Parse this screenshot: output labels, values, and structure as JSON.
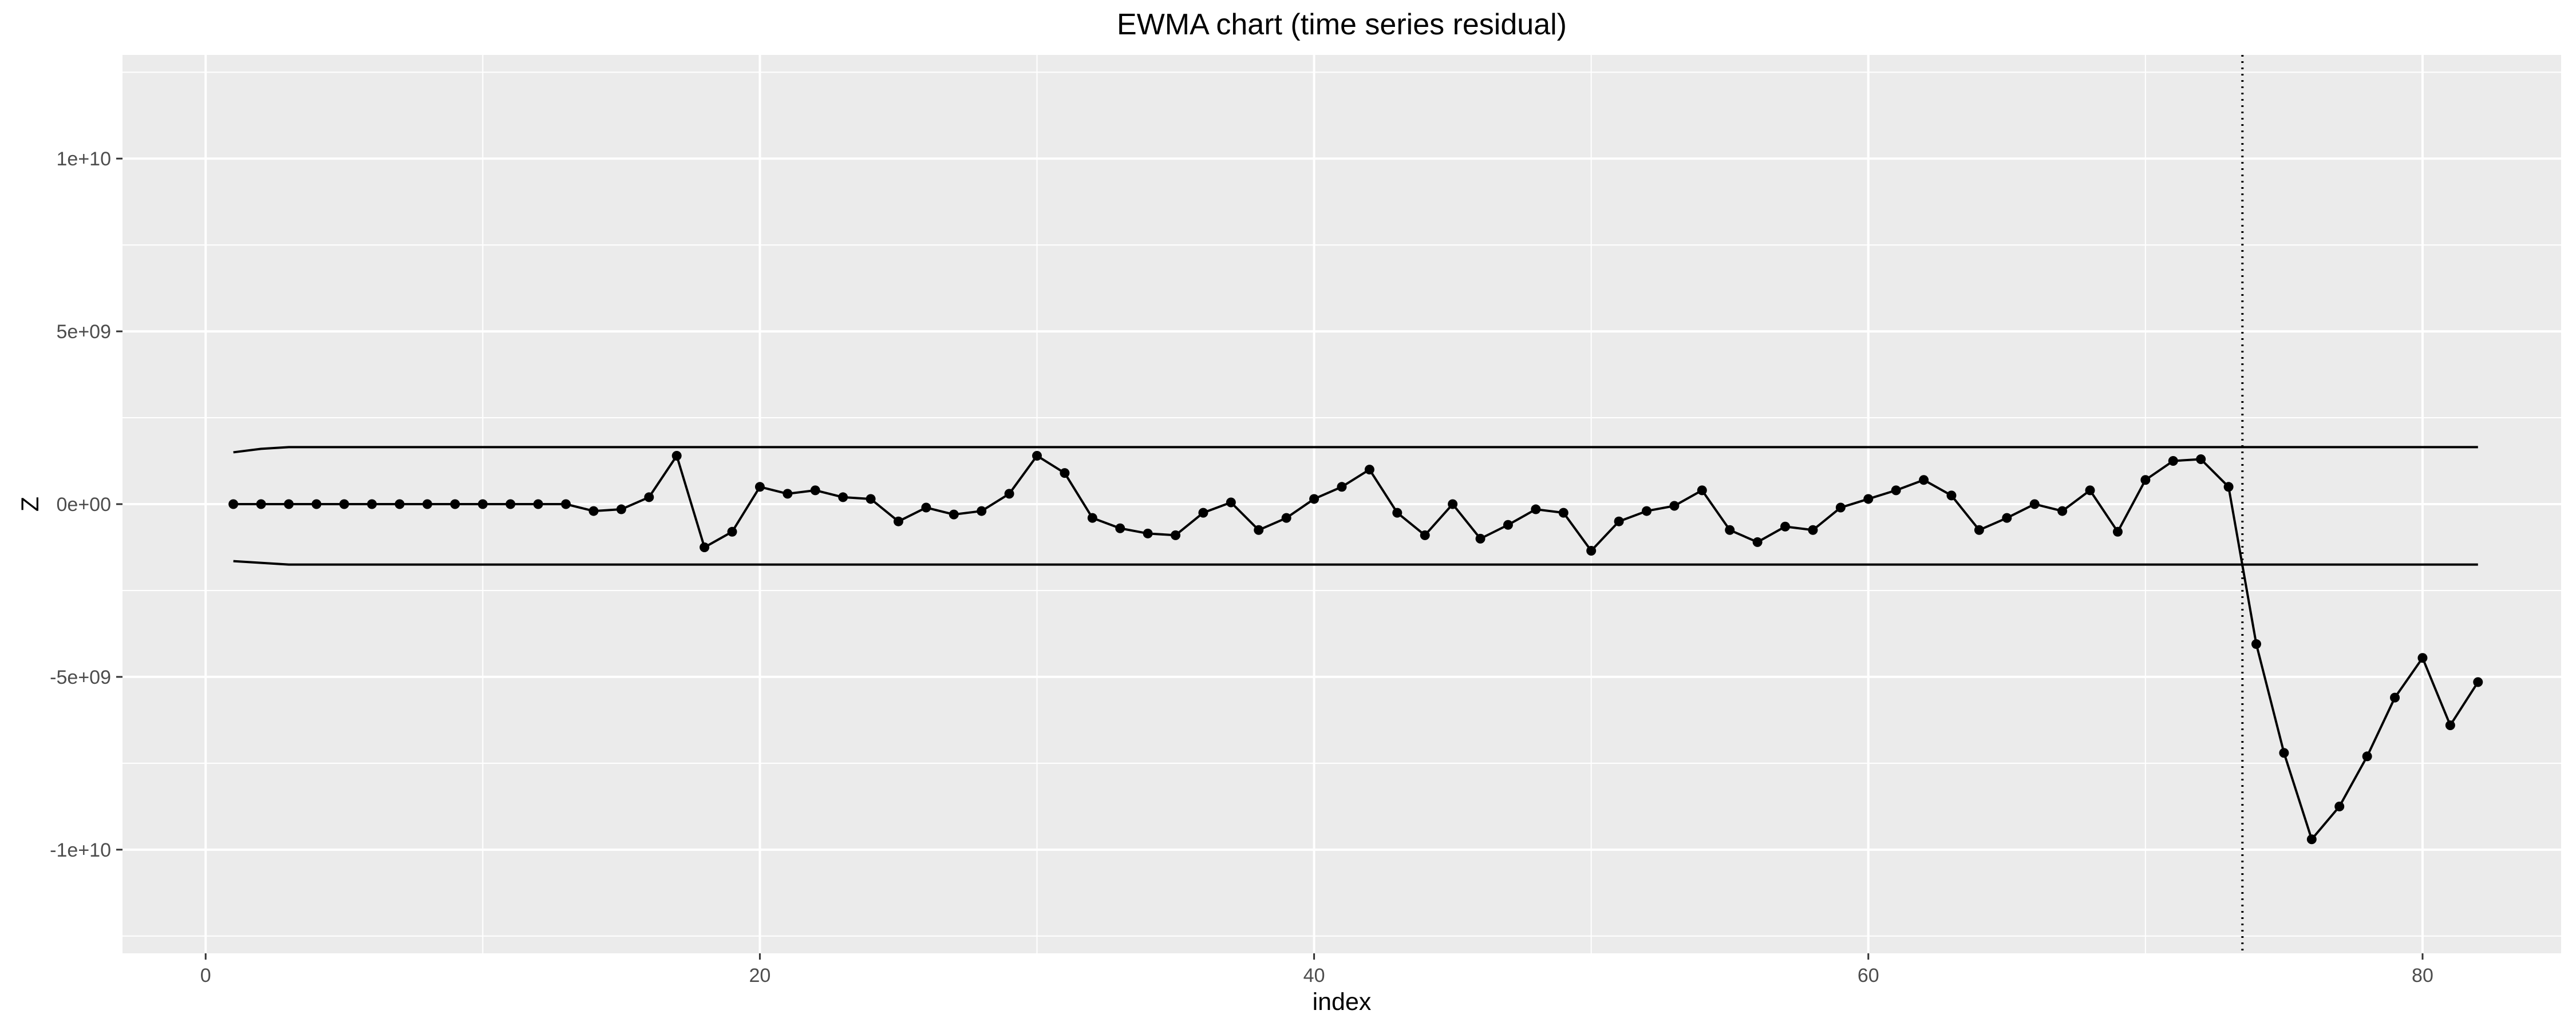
{
  "chart_data": {
    "type": "line",
    "title": "EWMA chart (time series residual)",
    "xlabel": "index",
    "ylabel": "Z",
    "xlim": [
      -3,
      85
    ],
    "ylim": [
      -13000000000,
      13000000000
    ],
    "x_ticks": [
      0,
      20,
      40,
      60,
      80
    ],
    "x_tick_labels": [
      "0",
      "20",
      "40",
      "60",
      "80"
    ],
    "y_ticks": [
      -10000000000,
      -5000000000,
      0,
      5000000000,
      10000000000
    ],
    "y_tick_labels": [
      "-1e+10",
      "-5e+09",
      "0e+00",
      "5e+09",
      "1e+10"
    ],
    "grid": true,
    "legend": "none",
    "colors": {
      "panel": "#ebebeb",
      "grid": "#ffffff",
      "line": "#000000",
      "tick_text": "#4d4d4d"
    },
    "series": [
      {
        "x": [
          1,
          2,
          3,
          4,
          5,
          6,
          7,
          8,
          9,
          10,
          11,
          12,
          13,
          14,
          15,
          16,
          17,
          18,
          19,
          20,
          21,
          22,
          23,
          24,
          25,
          26,
          27,
          28,
          29,
          30,
          31,
          32,
          33,
          34,
          35,
          36,
          37,
          38,
          39,
          40,
          41,
          42,
          43,
          44,
          45,
          46,
          47,
          48,
          49,
          50,
          51,
          52,
          53,
          54,
          55,
          56,
          57,
          58,
          59,
          60,
          61,
          62,
          63,
          64,
          65,
          66,
          67,
          68,
          69,
          70,
          71,
          72,
          73,
          74,
          75,
          76,
          77,
          78,
          79,
          80,
          81,
          82
        ],
        "values": [
          0,
          0,
          0,
          0,
          0,
          0,
          0,
          0,
          0,
          0,
          0,
          0,
          0,
          -200000000,
          -150000000,
          200000000,
          1400000000,
          -1250000000,
          -800000000,
          500000000,
          300000000,
          400000000,
          200000000,
          150000000,
          -500000000,
          -100000000,
          -300000000,
          -200000000,
          300000000,
          1400000000,
          900000000,
          -400000000,
          -700000000,
          -850000000,
          -900000000,
          -250000000,
          50000000,
          -750000000,
          -400000000,
          150000000,
          500000000,
          1000000000,
          -250000000,
          -900000000,
          0,
          -1000000000,
          -600000000,
          -150000000,
          -250000000,
          -1350000000,
          -500000000,
          -200000000,
          -50000000,
          400000000,
          -750000000,
          -1100000000,
          -650000000,
          -750000000,
          -100000000,
          150000000,
          400000000,
          700000000,
          250000000,
          -750000000,
          -400000000,
          0,
          -200000000,
          400000000,
          -800000000,
          700000000,
          1250000000,
          1300000000,
          500000000,
          -4050000000,
          -7200000000,
          -9700000000,
          -8750000000,
          -7300000000,
          -5600000000,
          -4450000000,
          -6400000000,
          -5150000000
        ]
      }
    ],
    "control_limits": {
      "upper": {
        "x": [
          1,
          2,
          3,
          82
        ],
        "values": [
          1500000000,
          1600000000,
          1650000000,
          1650000000
        ]
      },
      "lower": {
        "x": [
          1,
          2,
          3,
          82
        ],
        "values": [
          -1650000000,
          -1700000000,
          -1750000000,
          -1750000000
        ]
      }
    },
    "vline": {
      "x": 73.5,
      "style": "dotted"
    }
  }
}
